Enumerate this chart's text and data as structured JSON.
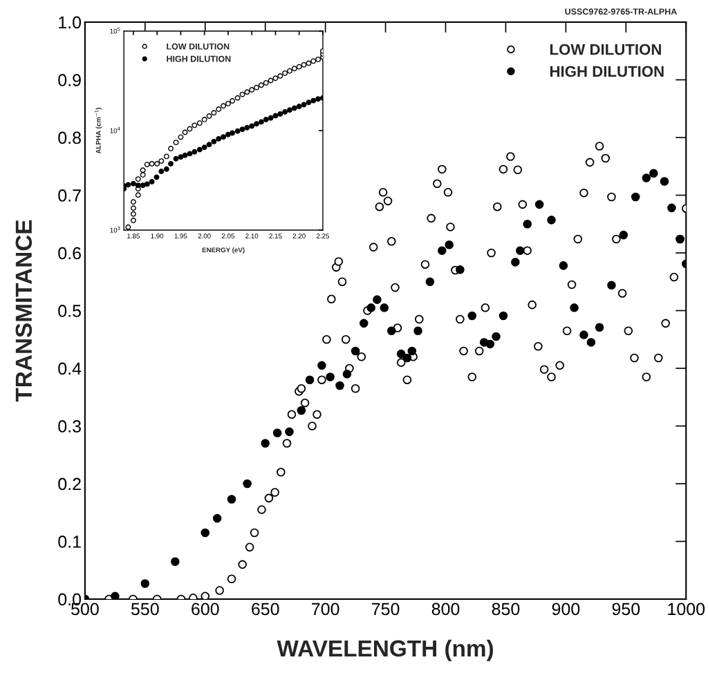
{
  "chart_data": [
    {
      "type": "scatter",
      "xlabel": "WAVELENGTH (nm)",
      "ylabel": "TRANSMITANCE",
      "annotations": [
        "USSC9762-9765-TR-ALPHA"
      ],
      "xlim": [
        500,
        1000
      ],
      "ylim": [
        0,
        1
      ],
      "xticks": [
        500,
        550,
        600,
        650,
        700,
        750,
        800,
        850,
        900,
        950,
        1000
      ],
      "yticks": [
        {
          "value": 0,
          "label": "0.0"
        },
        0.1,
        0.2,
        0.3,
        0.4,
        0.5,
        0.6,
        0.7,
        0.8,
        0.9,
        {
          "value": 1,
          "label": "1.0"
        }
      ],
      "grid": false,
      "legend": "top right",
      "marker": "circle",
      "series": [
        {
          "name": "LOW DILUTION",
          "color": "#ffffff",
          "x": [
            500,
            520,
            540,
            560,
            580,
            590,
            600,
            612,
            622,
            631,
            637,
            641,
            647,
            653,
            658,
            663,
            668,
            672,
            678,
            680,
            683,
            689,
            693,
            697,
            701,
            705,
            709,
            711,
            714,
            717,
            720,
            725,
            730,
            735,
            740,
            745,
            748,
            752,
            755,
            758,
            760,
            763,
            768,
            773,
            778,
            783,
            788,
            793,
            797,
            802,
            804,
            808,
            812,
            815,
            822,
            828,
            833,
            838,
            843,
            848,
            854,
            860,
            864,
            868,
            872,
            877,
            882,
            888,
            895,
            901,
            905,
            910,
            915,
            920,
            928,
            933,
            938,
            942,
            947,
            952,
            957,
            967,
            977,
            983,
            990,
            995,
            1000
          ],
          "values": [
            0,
            0,
            0,
            0,
            0,
            0.002,
            0.005,
            0.015,
            0.035,
            0.06,
            0.09,
            0.115,
            0.155,
            0.175,
            0.185,
            0.22,
            0.27,
            0.32,
            0.36,
            0.365,
            0.34,
            0.3,
            0.32,
            0.38,
            0.45,
            0.52,
            0.575,
            0.585,
            0.55,
            0.45,
            0.4,
            0.365,
            0.42,
            0.5,
            0.61,
            0.68,
            0.705,
            0.69,
            0.62,
            0.54,
            0.47,
            0.41,
            0.38,
            0.42,
            0.485,
            0.58,
            0.66,
            0.72,
            0.745,
            0.705,
            0.645,
            0.57,
            0.485,
            0.43,
            0.385,
            0.43,
            0.505,
            0.6,
            0.68,
            0.745,
            0.767,
            0.744,
            0.684,
            0.604,
            0.51,
            0.438,
            0.398,
            0.385,
            0.405,
            0.465,
            0.545,
            0.624,
            0.704,
            0.757,
            0.785,
            0.764,
            0.697,
            0.624,
            0.53,
            0.465,
            0.418,
            0.385,
            0.418,
            0.478,
            0.558,
            0.624,
            0.677
          ]
        },
        {
          "name": "HIGH DILUTION",
          "color": "#000000",
          "x": [
            500,
            525,
            550,
            575,
            600,
            610,
            622,
            635,
            650,
            660,
            670,
            680,
            687,
            697,
            704,
            712,
            718,
            725,
            732,
            738,
            743,
            749,
            755,
            763,
            768,
            772,
            777,
            787,
            797,
            803,
            812,
            822,
            832,
            837,
            842,
            848,
            858,
            862,
            868,
            878,
            888,
            898,
            907,
            915,
            921,
            928,
            938,
            948,
            958,
            967,
            973,
            982,
            988,
            995,
            1000
          ],
          "values": [
            0,
            0.005,
            0.027,
            0.065,
            0.115,
            0.14,
            0.173,
            0.2,
            0.27,
            0.288,
            0.29,
            0.327,
            0.38,
            0.405,
            0.385,
            0.37,
            0.39,
            0.43,
            0.478,
            0.505,
            0.519,
            0.505,
            0.465,
            0.425,
            0.418,
            0.43,
            0.465,
            0.55,
            0.604,
            0.614,
            0.571,
            0.491,
            0.445,
            0.442,
            0.455,
            0.491,
            0.584,
            0.604,
            0.65,
            0.684,
            0.657,
            0.578,
            0.505,
            0.458,
            0.445,
            0.471,
            0.544,
            0.631,
            0.697,
            0.73,
            0.738,
            0.724,
            0.678,
            0.624,
            0.581
          ]
        }
      ]
    },
    {
      "type": "scatter",
      "xlabel": "ENERGY (eV)",
      "ylabel": "ALPHA (cm$^{−1}$)",
      "log": "y",
      "xlim": [
        1.83,
        2.25
      ],
      "ylim": [
        1000,
        100000
      ],
      "xticks": [
        1.85,
        {
          "value": 1.9,
          "label": "1.90"
        },
        1.95,
        {
          "value": 2.0,
          "label": "2.00"
        },
        2.05,
        {
          "value": 2.1,
          "label": "2.10"
        },
        2.15,
        {
          "value": 2.2,
          "label": "2.20"
        },
        2.25
      ],
      "yticks": [
        {
          "value": 1000,
          "label": "10$^{3}$"
        },
        {
          "value": 10000,
          "label": "10$^{4}$"
        },
        {
          "value": 100000,
          "label": "10$^{5}$"
        }
      ],
      "grid": false,
      "legend": "top left",
      "marker": "circle",
      "series": [
        {
          "name": "LOW DILUTION",
          "color": "#ffffff",
          "x": [
            1.839,
            1.85,
            1.85,
            1.85,
            1.85,
            1.86,
            1.86,
            1.86,
            1.87,
            1.87,
            1.879,
            1.889,
            1.9,
            1.909,
            1.92,
            1.929,
            1.94,
            1.95,
            1.959,
            1.969,
            1.979,
            1.99,
            2.0,
            2.01,
            2.02,
            2.03,
            2.04,
            2.05,
            2.059,
            2.07,
            2.08,
            2.09,
            2.1,
            2.11,
            2.12,
            2.13,
            2.14,
            2.15,
            2.16,
            2.17,
            2.18,
            2.19,
            2.2,
            2.21,
            2.22,
            2.23,
            2.24,
            2.25,
            2.25,
            2.25
          ],
          "values": [
            1070,
            1250,
            1450,
            1660,
            1920,
            2250,
            2600,
            3260,
            3590,
            4000,
            4560,
            4640,
            4640,
            4940,
            5500,
            6600,
            7600,
            8600,
            9600,
            10400,
            11300,
            11900,
            12900,
            14000,
            15100,
            16400,
            17700,
            18700,
            19900,
            21300,
            23100,
            24400,
            25700,
            27100,
            28600,
            30200,
            31900,
            33600,
            35400,
            37800,
            39800,
            42000,
            43800,
            45800,
            47500,
            50000,
            52000,
            54800,
            58800,
            63000
          ]
        },
        {
          "name": "HIGH DILUTION",
          "color": "#000000",
          "x": [
            1.83,
            1.83,
            1.839,
            1.85,
            1.86,
            1.87,
            1.879,
            1.889,
            1.899,
            1.909,
            1.92,
            1.929,
            1.94,
            1.95,
            1.959,
            1.969,
            1.979,
            1.99,
            2.0,
            2.01,
            2.02,
            2.03,
            2.04,
            2.05,
            2.059,
            2.07,
            2.08,
            2.09,
            2.1,
            2.11,
            2.12,
            2.13,
            2.14,
            2.15,
            2.16,
            2.17,
            2.18,
            2.19,
            2.2,
            2.21,
            2.22,
            2.23,
            2.24,
            2.25
          ],
          "values": [
            2600,
            2780,
            2850,
            2930,
            2820,
            2820,
            2900,
            3060,
            3400,
            3890,
            4100,
            4640,
            5210,
            5430,
            5640,
            5860,
            6110,
            6440,
            6790,
            7240,
            7760,
            8270,
            8640,
            9120,
            9460,
            9880,
            10300,
            10700,
            11100,
            11700,
            12200,
            12900,
            13400,
            14100,
            14700,
            15400,
            16100,
            16800,
            17500,
            18200,
            19200,
            20000,
            20800,
            21300
          ]
        }
      ]
    }
  ]
}
